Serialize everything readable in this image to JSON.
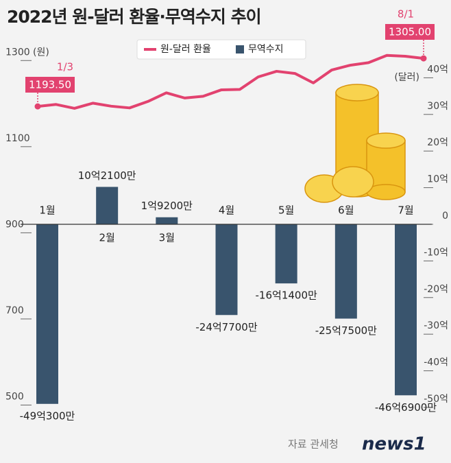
{
  "chart_data": {
    "type": "combo",
    "title": "2022년 원-달러 환율·무역수지 추이",
    "categories": [
      "1월",
      "2월",
      "3월",
      "4월",
      "5월",
      "6월",
      "7월"
    ],
    "ylim": [
      469,
      1345
    ],
    "yticks": [
      1300,
      1100,
      900,
      700,
      500
    ],
    "y_unit": "(원)",
    "y2lim": [
      -53,
      50
    ],
    "y2ticks": [
      {
        "value": 40,
        "label": "40억"
      },
      {
        "value": 30,
        "label": "30억"
      },
      {
        "value": 20,
        "label": "20억"
      },
      {
        "value": 10,
        "label": "10억"
      },
      0,
      {
        "value": -10,
        "label": "-10억"
      },
      {
        "value": -20,
        "label": "-20억"
      },
      {
        "value": -30,
        "label": "-30억"
      },
      {
        "value": -40,
        "label": "-40억"
      },
      {
        "value": -50,
        "label": "-50억"
      }
    ],
    "y2_unit": "(달러)",
    "series": [
      {
        "name": "원-달러 환율",
        "type": "line",
        "axis": "y",
        "color": "#e2426f",
        "x": [
          "1/3",
          null,
          null,
          null,
          null,
          null,
          null,
          null,
          null,
          null,
          null,
          null,
          null,
          null,
          null,
          null,
          null,
          null,
          null,
          null,
          null,
          "8/1"
        ],
        "values": [
          1193.5,
          1198,
          1189,
          1201,
          1194,
          1190,
          1205,
          1225,
          1213,
          1217,
          1232,
          1233,
          1262,
          1275,
          1270,
          1248,
          1278,
          1289,
          1295,
          1312,
          1310,
          1305
        ],
        "value_labels": [
          "1193.50",
          null,
          null,
          null,
          null,
          null,
          null,
          null,
          null,
          null,
          null,
          null,
          null,
          null,
          null,
          null,
          null,
          null,
          null,
          null,
          null,
          "1305.00"
        ]
      },
      {
        "name": "무역수지",
        "type": "bar",
        "axis": "y2",
        "color": "#39546d",
        "values": [
          -49.03,
          10.21,
          1.92,
          -24.77,
          -16.14,
          -25.75,
          -46.69
        ],
        "value_labels": [
          "-49억300만",
          "10억2100만",
          "1억9200만",
          "-24억7700만",
          "-16억1400만",
          "-25억7500만",
          "-46억6900만"
        ]
      }
    ],
    "source": "자료 관세청",
    "logo": "news1"
  }
}
